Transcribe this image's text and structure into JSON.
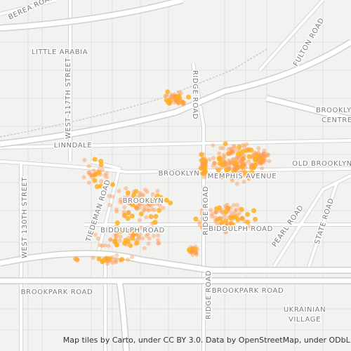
{
  "labels": [
    {
      "text": "BEREA ROAD"
    },
    {
      "text": "LITTLE ARABIA"
    },
    {
      "text": "WEST 117TH STREET"
    },
    {
      "text": "RIDGE ROAD"
    },
    {
      "text": "FULTON ROAD"
    },
    {
      "text": "BROOKLYN"
    },
    {
      "text": "CENTRE"
    },
    {
      "text": "LINNDALE"
    },
    {
      "text": "WEST 130TH STREET"
    },
    {
      "text": "BROOKLYN"
    },
    {
      "text": "MEMPHIS AVENUE"
    },
    {
      "text": "OLD BROOKLYN"
    },
    {
      "text": "TIEDEMAN ROAD"
    },
    {
      "text": "BROOKLYN"
    },
    {
      "text": "RIDGE ROAD"
    },
    {
      "text": "BIDDULPH ROAD"
    },
    {
      "text": "BIDDULPH ROAD"
    },
    {
      "text": "PEARL ROAD"
    },
    {
      "text": "STATE ROAD"
    },
    {
      "text": "BROOKPARK ROAD"
    },
    {
      "text": "BROOKPARK ROAD"
    },
    {
      "text": "RIDGE ROAD"
    },
    {
      "text": "UKRAINIAN"
    },
    {
      "text": "VILLAGE"
    }
  ],
  "attribution": "Map tiles by Carto, under CC BY 3.0. Data by OpenStreetMap, under ODbL."
}
